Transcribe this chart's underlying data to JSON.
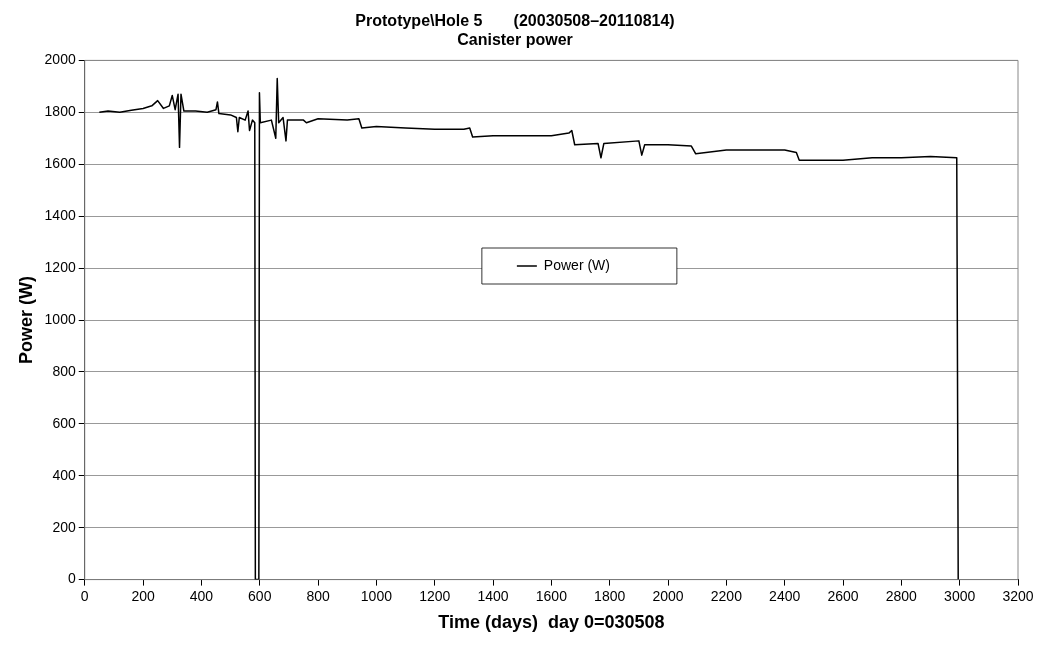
{
  "chart_data": {
    "type": "line",
    "title": "Prototype\\Hole 5       (20030508–20110814)",
    "subtitle": "Canister power",
    "xlabel": "Time (days)  day 0=030508",
    "ylabel": "Power (W)",
    "xlim": [
      0,
      3200
    ],
    "xticks": [
      0,
      200,
      400,
      600,
      800,
      1000,
      1200,
      1400,
      1600,
      1800,
      2000,
      2200,
      2400,
      2600,
      2800,
      3000,
      3200
    ],
    "ylim": [
      0,
      2000
    ],
    "yticks": [
      0,
      200,
      400,
      600,
      800,
      1000,
      1200,
      1400,
      1600,
      1800,
      2000
    ],
    "grid": "y",
    "legend": "center",
    "marker": "none",
    "line_style": "solid",
    "series": [
      {
        "name": "Power (W)",
        "color": "#000000",
        "x": [
          50,
          80,
          120,
          160,
          200,
          230,
          250,
          270,
          290,
          300,
          310,
          320,
          325,
          330,
          340,
          380,
          420,
          450,
          455,
          460,
          500,
          520,
          525,
          530,
          550,
          560,
          565,
          575,
          583,
          585,
          597,
          599,
          602,
          640,
          655,
          660,
          665,
          680,
          690,
          695,
          750,
          760,
          800,
          900,
          940,
          950,
          1000,
          1100,
          1200,
          1300,
          1320,
          1330,
          1400,
          1500,
          1600,
          1660,
          1670,
          1680,
          1760,
          1770,
          1780,
          1900,
          1910,
          1920,
          2000,
          2080,
          2095,
          2200,
          2400,
          2440,
          2450,
          2600,
          2700,
          2800,
          2900,
          2990,
          2995
        ],
        "values": [
          1800,
          1805,
          1800,
          1808,
          1815,
          1825,
          1845,
          1815,
          1825,
          1865,
          1810,
          1870,
          1665,
          1870,
          1805,
          1805,
          1800,
          1810,
          1840,
          1795,
          1790,
          1780,
          1725,
          1780,
          1770,
          1805,
          1730,
          1770,
          1760,
          0,
          0,
          1875,
          1760,
          1770,
          1700,
          1930,
          1760,
          1780,
          1690,
          1770,
          1770,
          1760,
          1775,
          1770,
          1775,
          1740,
          1745,
          1740,
          1735,
          1735,
          1740,
          1705,
          1710,
          1710,
          1710,
          1720,
          1730,
          1675,
          1680,
          1625,
          1680,
          1690,
          1635,
          1675,
          1675,
          1670,
          1640,
          1655,
          1655,
          1645,
          1615,
          1615,
          1625,
          1625,
          1630,
          1625,
          0
        ]
      }
    ]
  }
}
